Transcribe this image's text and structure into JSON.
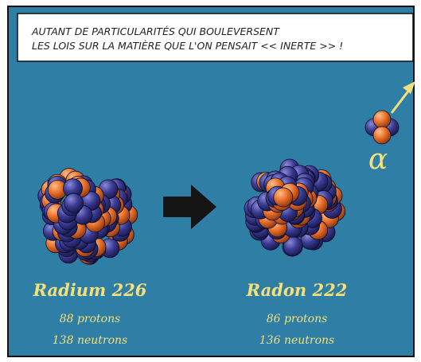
{
  "caption": {
    "lines": [
      "AUTANT DE PARTICULARITÉS QUI BOULEVERSENT",
      "LES LOIS SUR LA MATIÈRE QUE L'ON PENSAIT << INERTE >> !"
    ]
  },
  "nuclei": [
    {
      "name": "Radium 226",
      "protons": "88 protons",
      "neutrons": "138 neutrons"
    },
    {
      "name": "Radon 222",
      "protons": "86 protons",
      "neutrons": "136 neutrons"
    }
  ],
  "alpha": {
    "symbol": "α"
  }
}
